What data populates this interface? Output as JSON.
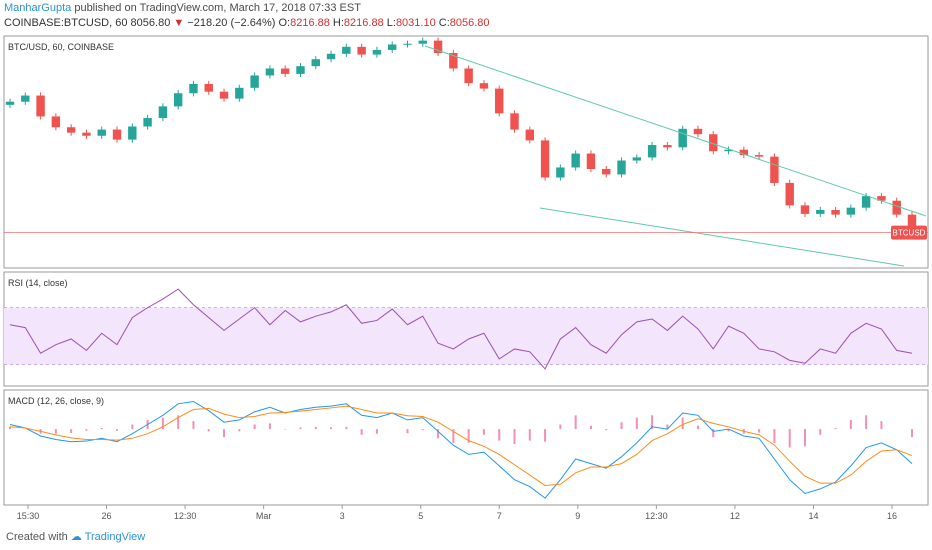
{
  "header": {
    "author": "ManharGupta",
    "published": "published on TradingView.com, March 17, 2018 07:33 EST",
    "symbol": "COINBASE:BTCUSD, 60",
    "last": "8056.80",
    "change_arrow": "▼",
    "change": "−218.20 (−2.64%)",
    "o_label": "O:",
    "o_value": "8216.88",
    "h_label": "H:",
    "h_value": "8216.88",
    "l_label": "L:",
    "l_value": "8031.10",
    "c_label": "C:",
    "c_value": "8056.80"
  },
  "footer": {
    "created_with": "Created with",
    "brand": "TradingView"
  },
  "colors": {
    "up": "#26a69a",
    "down": "#ef5350",
    "trendline": "#5fc9a8",
    "rsi_line": "#9c4fb5",
    "rsi_band": "#f3e5fb",
    "macd_line": "#2196f3",
    "signal_line": "#ff8c1a",
    "histogram": "#f48fb1",
    "price_line": "#e57373",
    "price_tag": "#ef5350"
  },
  "chart_data": [
    {
      "type": "candlestick",
      "title": "BTC/USD, 60, COINBASE",
      "series_label": "BTCUSD",
      "ylim": [
        7600,
        10600
      ],
      "x_ticks": [
        "15:30",
        "26",
        "12:30",
        "Mar",
        "3",
        "5",
        "7",
        "9",
        "12:30",
        "12",
        "14",
        "16"
      ],
      "x": [
        0,
        3,
        6,
        9,
        12,
        15,
        18,
        21,
        24,
        27,
        30,
        33,
        36,
        39,
        42,
        45,
        48,
        51,
        54,
        57,
        60,
        63,
        66,
        69,
        72,
        75,
        78,
        81,
        84,
        87,
        90,
        93,
        96,
        99,
        102,
        105,
        108,
        111,
        114,
        117,
        120,
        123,
        126,
        129,
        132,
        135,
        138,
        141,
        144,
        147,
        150,
        153,
        156,
        159,
        162,
        165,
        168,
        171,
        174,
        177
      ],
      "close": [
        9750,
        9830,
        9560,
        9420,
        9350,
        9310,
        9390,
        9260,
        9430,
        9540,
        9690,
        9860,
        9980,
        9880,
        9790,
        9930,
        10090,
        10180,
        10110,
        10210,
        10300,
        10370,
        10460,
        10360,
        10420,
        10490,
        10500,
        10540,
        10380,
        10180,
        9990,
        9920,
        9600,
        9390,
        9250,
        8770,
        8900,
        9080,
        8880,
        8810,
        8990,
        9030,
        9190,
        9160,
        9400,
        9330,
        9110,
        9130,
        9060,
        9040,
        8700,
        8410,
        8300,
        8350,
        8290,
        8380,
        8530,
        8470,
        8290,
        8057
      ],
      "rsi": {
        "period": 14,
        "label": "RSI (14, close)",
        "ylim": [
          15,
          95
        ],
        "upper": 70,
        "lower": 30,
        "values": [
          58,
          56,
          38,
          44,
          48,
          40,
          52,
          44,
          63,
          70,
          76,
          83,
          72,
          63,
          54,
          62,
          70,
          58,
          68,
          60,
          64,
          67,
          72,
          59,
          61,
          69,
          58,
          64,
          45,
          41,
          48,
          52,
          34,
          41,
          39,
          27,
          48,
          56,
          44,
          38,
          51,
          60,
          62,
          54,
          64,
          55,
          41,
          57,
          52,
          41,
          39,
          33,
          31,
          41,
          38,
          52,
          59,
          55,
          40,
          38
        ]
      },
      "macd": {
        "label": "MACD (12, 26, close, 9)",
        "ylim": [
          -330,
          170
        ],
        "macd": [
          20,
          5,
          -30,
          -45,
          -55,
          -52,
          -40,
          -55,
          -20,
          20,
          60,
          110,
          120,
          80,
          30,
          40,
          75,
          95,
          70,
          85,
          95,
          100,
          110,
          60,
          50,
          70,
          40,
          50,
          -10,
          -70,
          -110,
          -100,
          -160,
          -220,
          -250,
          -300,
          -220,
          -130,
          -150,
          -170,
          -120,
          -60,
          10,
          0,
          70,
          60,
          -10,
          0,
          -30,
          -40,
          -130,
          -220,
          -280,
          -260,
          -230,
          -160,
          -80,
          -60,
          -90,
          -150
        ],
        "signal": [
          10,
          5,
          -10,
          -25,
          -38,
          -45,
          -45,
          -48,
          -40,
          -20,
          10,
          50,
          85,
          90,
          65,
          50,
          55,
          70,
          72,
          78,
          85,
          92,
          100,
          85,
          70,
          70,
          58,
          55,
          30,
          -10,
          -50,
          -75,
          -110,
          -155,
          -200,
          -245,
          -240,
          -190,
          -165,
          -165,
          -150,
          -110,
          -50,
          -20,
          20,
          45,
          25,
          10,
          -10,
          -25,
          -70,
          -140,
          -205,
          -235,
          -235,
          -200,
          -140,
          -95,
          -90,
          -115
        ],
        "histogram": [
          10,
          0,
          -20,
          -20,
          -17,
          -7,
          5,
          -7,
          20,
          40,
          50,
          60,
          35,
          -10,
          -35,
          -10,
          20,
          25,
          -2,
          7,
          10,
          8,
          10,
          -25,
          -20,
          0,
          -18,
          -5,
          -40,
          -60,
          -60,
          -25,
          -50,
          -65,
          -50,
          -55,
          20,
          60,
          15,
          -5,
          30,
          50,
          60,
          20,
          50,
          15,
          -35,
          -10,
          -20,
          -15,
          -60,
          -80,
          -75,
          -25,
          5,
          40,
          60,
          35,
          0,
          -35
        ]
      }
    }
  ]
}
